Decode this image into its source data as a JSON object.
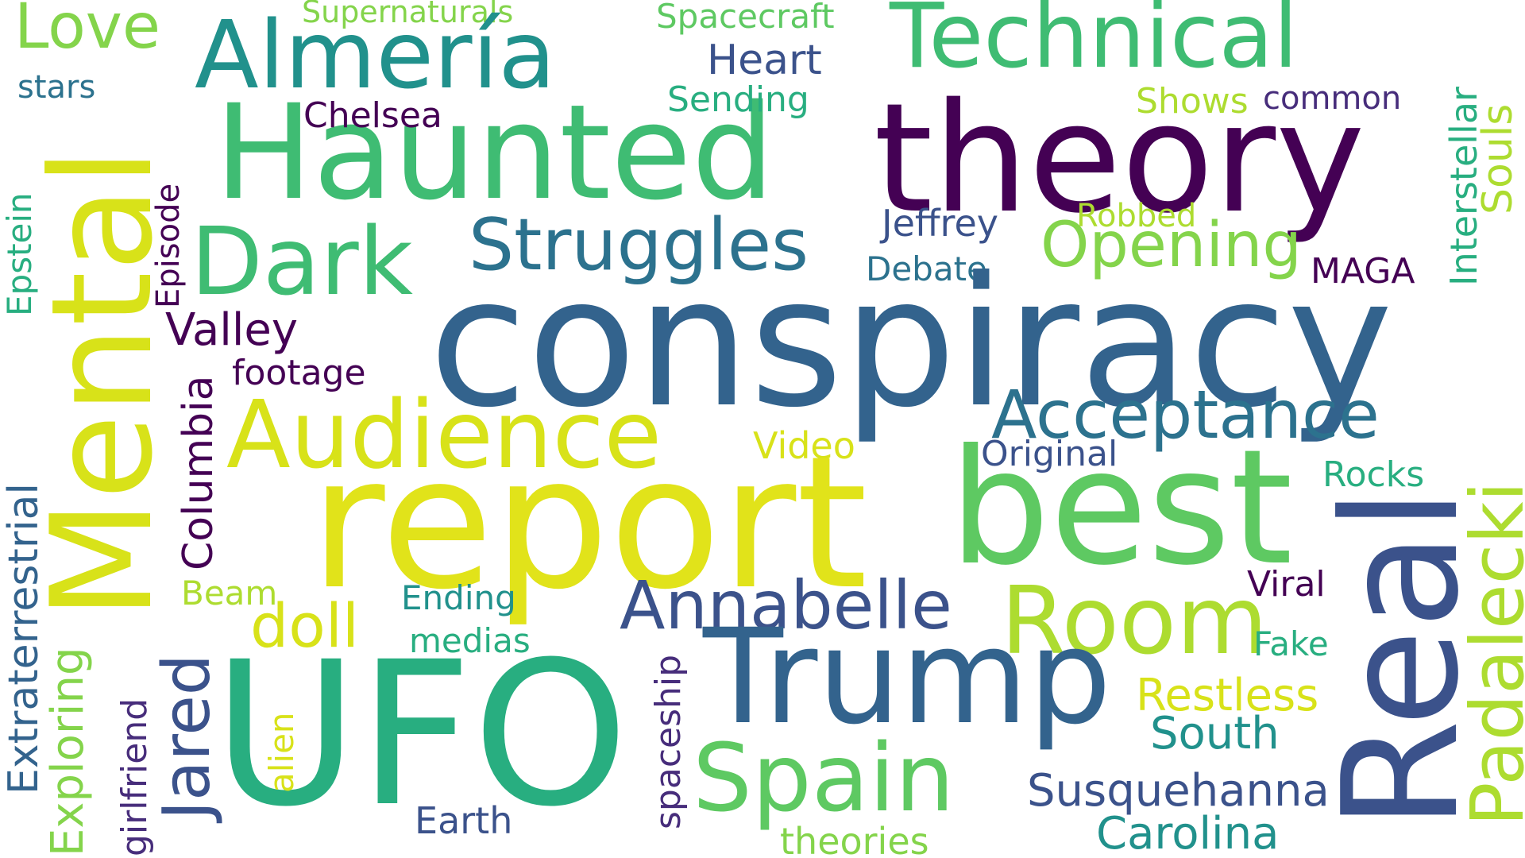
{
  "title": "",
  "colors": {
    "c_purple_dark": "#440154",
    "c_purple": "#472d7b",
    "c_indigo": "#3b528b",
    "c_blue": "#33638d",
    "c_teal_blue": "#2c728e",
    "c_teal": "#21918c",
    "c_teal_green": "#28ae80",
    "c_green": "#3fbc73",
    "c_green_light": "#5ec962",
    "c_lime": "#84d44b",
    "c_yellow_green": "#addc30",
    "c_yellow": "#d8e219",
    "c_yellow_bright": "#e1e31a"
  },
  "words": [
    {
      "text": "Love",
      "color": "#84d44b"
    },
    {
      "text": "stars",
      "color": "#2c728e"
    },
    {
      "text": "Supernaturals",
      "color": "#84d44b"
    },
    {
      "text": "Almería",
      "color": "#21918c"
    },
    {
      "text": "Spacecraft",
      "color": "#5ec962"
    },
    {
      "text": "Heart",
      "color": "#3b528b"
    },
    {
      "text": "Technical",
      "color": "#3fbc73"
    },
    {
      "text": "Haunted",
      "color": "#3fbc73"
    },
    {
      "text": "Sending",
      "color": "#28ae80"
    },
    {
      "text": "Shows",
      "color": "#addc30"
    },
    {
      "text": "common",
      "color": "#472d7b"
    },
    {
      "text": "Chelsea",
      "color": "#440154"
    },
    {
      "text": "theory",
      "color": "#440154"
    },
    {
      "text": "Interstellar",
      "color": "#28ae80"
    },
    {
      "text": "Souls",
      "color": "#addc30"
    },
    {
      "text": "Mental",
      "color": "#d8e219"
    },
    {
      "text": "Epstein",
      "color": "#28ae80"
    },
    {
      "text": "Episode",
      "color": "#440154"
    },
    {
      "text": "Dark",
      "color": "#3fbc73"
    },
    {
      "text": "Struggles",
      "color": "#2c728e"
    },
    {
      "text": "Jeffrey",
      "color": "#3b528b"
    },
    {
      "text": "Robbed",
      "color": "#addc30"
    },
    {
      "text": "Opening",
      "color": "#84d44b"
    },
    {
      "text": "Debate",
      "color": "#2c728e"
    },
    {
      "text": "MAGA",
      "color": "#440154"
    },
    {
      "text": "conspiracy",
      "color": "#33638d"
    },
    {
      "text": "Valley",
      "color": "#440154"
    },
    {
      "text": "footage",
      "color": "#440154"
    },
    {
      "text": "Extraterrestrial",
      "color": "#33638d"
    },
    {
      "text": "Columbia",
      "color": "#440154"
    },
    {
      "text": "Audience",
      "color": "#d8e219"
    },
    {
      "text": "Acceptance",
      "color": "#2c728e"
    },
    {
      "text": "Video",
      "color": "#d8e219"
    },
    {
      "text": "Original",
      "color": "#3b528b"
    },
    {
      "text": "report",
      "color": "#e1e31a"
    },
    {
      "text": "best",
      "color": "#5ec962"
    },
    {
      "text": "Rocks",
      "color": "#28ae80"
    },
    {
      "text": "Padalecki",
      "color": "#addc30"
    },
    {
      "text": "Real",
      "color": "#3b528b"
    },
    {
      "text": "Beam",
      "color": "#addc30"
    },
    {
      "text": "Ending",
      "color": "#21918c"
    },
    {
      "text": "doll",
      "color": "#d8e219"
    },
    {
      "text": "Annabelle",
      "color": "#3b528b"
    },
    {
      "text": "Room",
      "color": "#addc30"
    },
    {
      "text": "Viral",
      "color": "#440154"
    },
    {
      "text": "Exploring",
      "color": "#84d44b"
    },
    {
      "text": "girlfriend",
      "color": "#472d7b"
    },
    {
      "text": "Jared",
      "color": "#3b528b"
    },
    {
      "text": "medias",
      "color": "#28ae80"
    },
    {
      "text": "Fake",
      "color": "#28ae80"
    },
    {
      "text": "Trump",
      "color": "#33638d"
    },
    {
      "text": "UFO",
      "color": "#28ae80"
    },
    {
      "text": "alien",
      "color": "#d8e219"
    },
    {
      "text": "spaceship",
      "color": "#472d7b"
    },
    {
      "text": "Restless",
      "color": "#d8e219"
    },
    {
      "text": "South",
      "color": "#21918c"
    },
    {
      "text": "Spain",
      "color": "#5ec962"
    },
    {
      "text": "Susquehanna",
      "color": "#3b528b"
    },
    {
      "text": "Earth",
      "color": "#3b528b"
    },
    {
      "text": "theories",
      "color": "#84d44b"
    },
    {
      "text": "Carolina",
      "color": "#21918c"
    }
  ]
}
